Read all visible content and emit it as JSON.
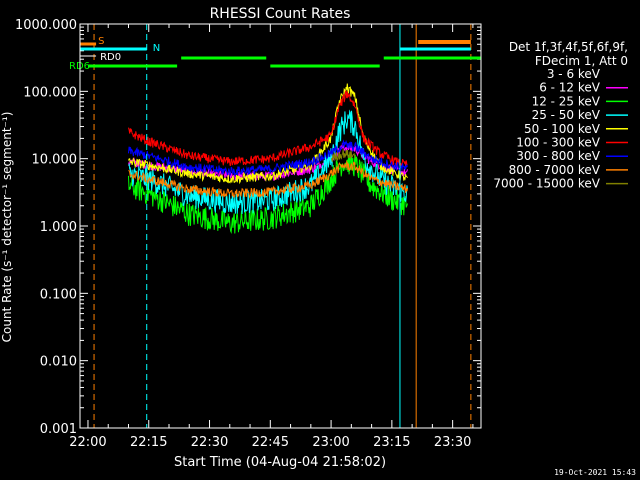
{
  "chart_data": {
    "type": "line",
    "title": "RHESSI Count Rates",
    "xlabel": "Start Time (04-Aug-04 21:58:02)",
    "ylabel": "Count Rate (s⁻¹ detector⁻¹ segment⁻¹)",
    "y_scale": "log",
    "ylim": [
      0.001,
      1000
    ],
    "xlim": [
      "21:58:02",
      "23:37:00"
    ],
    "x_ticks": [
      "22:00",
      "22:15",
      "22:30",
      "22:45",
      "23:00",
      "23:15",
      "23:30"
    ],
    "y_ticks": [
      "0.001",
      "0.010",
      "0.100",
      "1.000",
      "10.000",
      "100.000",
      "1000.000"
    ],
    "legend_header": [
      "Det 1f,3f,4f,5f,6f,9f,",
      "FDecim 1, Att 0"
    ],
    "legend_position": "right",
    "series": [
      {
        "name": "3 - 6 keV",
        "color": "#000000",
        "x": [
          "22:10",
          "22:15",
          "22:25",
          "22:35",
          "22:45",
          "22:55",
          "23:00",
          "23:03",
          "23:06",
          "23:10",
          "23:15",
          "23:19"
        ],
        "values": [
          7.0,
          6.0,
          4.0,
          3.0,
          3.0,
          4.5,
          8.0,
          12.0,
          12.0,
          7.0,
          5.0,
          4.0
        ]
      },
      {
        "name": "6 - 12 keV",
        "color": "#ff00ff",
        "x": [
          "22:10",
          "22:15",
          "22:25",
          "22:35",
          "22:45",
          "22:55",
          "23:00",
          "23:03",
          "23:06",
          "23:10",
          "23:15",
          "23:19"
        ],
        "values": [
          9.0,
          8.0,
          6.5,
          5.5,
          5.5,
          7.0,
          10.0,
          15.0,
          14.0,
          9.0,
          7.0,
          6.0
        ]
      },
      {
        "name": "12 - 25 keV",
        "color": "#00ff00",
        "x": [
          "22:10",
          "22:15",
          "22:25",
          "22:35",
          "22:45",
          "22:55",
          "23:00",
          "23:03",
          "23:06",
          "23:10",
          "23:15",
          "23:19"
        ],
        "values": [
          4.0,
          3.0,
          1.5,
          1.1,
          1.3,
          2.0,
          5.0,
          9.0,
          8.0,
          4.0,
          2.5,
          2.0
        ]
      },
      {
        "name": "25 - 50 keV",
        "color": "#00ffff",
        "x": [
          "22:10",
          "22:15",
          "22:25",
          "22:35",
          "22:45",
          "22:55",
          "23:00",
          "23:02",
          "23:04",
          "23:06",
          "23:08",
          "23:12",
          "23:16",
          "23:19"
        ],
        "values": [
          6.0,
          5.0,
          2.8,
          2.2,
          2.4,
          4.0,
          10.0,
          25.0,
          40.0,
          30.0,
          10.0,
          5.0,
          3.5,
          3.0
        ]
      },
      {
        "name": "50 - 100 keV",
        "color": "#ffff00",
        "x": [
          "22:10",
          "22:15",
          "22:25",
          "22:35",
          "22:45",
          "22:55",
          "23:00",
          "23:02",
          "23:04",
          "23:06",
          "23:08",
          "23:12",
          "23:16",
          "23:19"
        ],
        "values": [
          9.0,
          8.0,
          6.0,
          5.0,
          5.5,
          8.0,
          20.0,
          70.0,
          115.0,
          80.0,
          20.0,
          8.0,
          6.0,
          5.0
        ]
      },
      {
        "name": "100 - 300 keV",
        "color": "#ff0000",
        "x": [
          "22:10",
          "22:15",
          "22:25",
          "22:35",
          "22:45",
          "22:55",
          "23:00",
          "23:02",
          "23:04",
          "23:06",
          "23:08",
          "23:12",
          "23:16",
          "23:19"
        ],
        "values": [
          25.0,
          18.0,
          11.0,
          9.0,
          10.0,
          15.0,
          22.0,
          60.0,
          95.0,
          60.0,
          20.0,
          12.0,
          9.0,
          8.0
        ]
      },
      {
        "name": "300 - 800 keV",
        "color": "#0000ff",
        "x": [
          "22:10",
          "22:15",
          "22:25",
          "22:35",
          "22:45",
          "22:55",
          "23:00",
          "23:03",
          "23:06",
          "23:10",
          "23:15",
          "23:19"
        ],
        "values": [
          13.0,
          11.0,
          7.5,
          6.5,
          7.0,
          9.0,
          12.0,
          16.0,
          15.0,
          10.0,
          8.0,
          7.0
        ]
      },
      {
        "name": "800 - 7000 keV",
        "color": "#ff8000",
        "x": [
          "22:10",
          "22:15",
          "22:25",
          "22:35",
          "22:45",
          "22:55",
          "23:00",
          "23:03",
          "23:06",
          "23:10",
          "23:15",
          "23:19"
        ],
        "values": [
          6.0,
          5.0,
          3.5,
          3.0,
          3.2,
          4.0,
          6.0,
          8.0,
          7.5,
          5.0,
          4.0,
          3.5
        ]
      },
      {
        "name": "7000 - 15000 keV",
        "color": "#808000",
        "x": [
          "23:00",
          "23:03",
          "23:06"
        ],
        "values": [
          10.0,
          12.0,
          11.0
        ]
      }
    ],
    "annotations": [
      {
        "label": "S",
        "color": "#ff8000"
      },
      {
        "label": "N",
        "color": "#00ffff"
      },
      {
        "label": "RD0",
        "color": "#ffffff"
      },
      {
        "label": "RD6",
        "color": "#00ff00"
      }
    ],
    "footer": "19-Oct-2021 15:43"
  }
}
